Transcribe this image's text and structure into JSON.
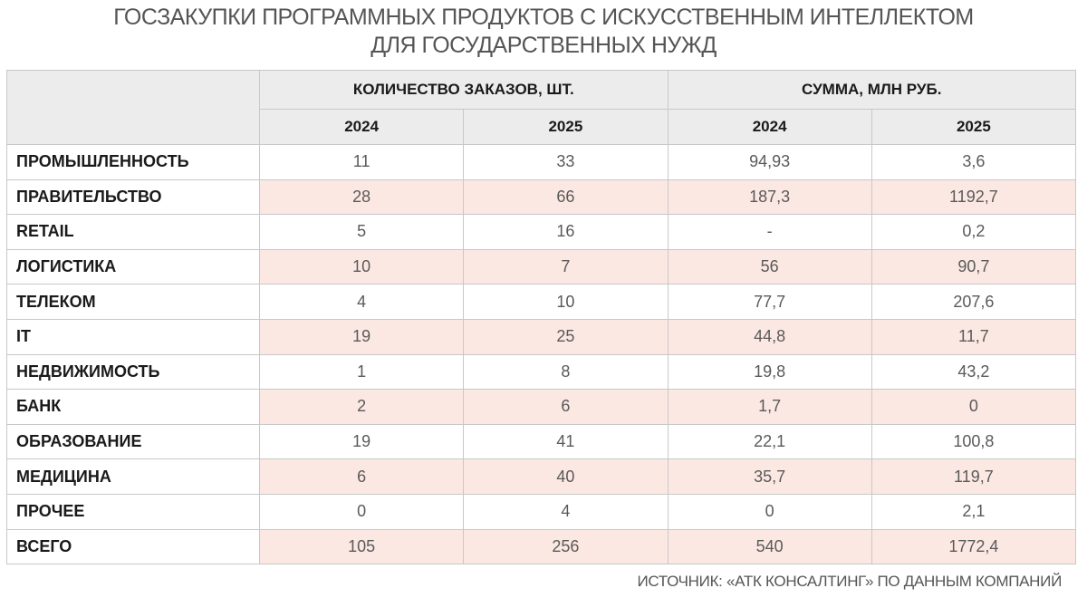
{
  "title": {
    "line1": "ГОСЗАКУПКИ ПРОГРАММНЫХ ПРОДУКТОВ С ИСКУССТВЕННЫМ ИНТЕЛЛЕКТОМ",
    "line2": "ДЛЯ ГОСУДАРСТВЕННЫХ НУЖД"
  },
  "table": {
    "group_headers": [
      "КОЛИЧЕСТВО ЗАКАЗОВ, ШТ.",
      "СУММА, МЛН РУБ."
    ],
    "year_headers": [
      "2024",
      "2025",
      "2024",
      "2025"
    ],
    "rows": [
      {
        "label": "ПРОМЫШЛЕННОСТЬ",
        "values": [
          "11",
          "33",
          "94,93",
          "3,6"
        ]
      },
      {
        "label": "ПРАВИТЕЛЬСТВО",
        "values": [
          "28",
          "66",
          "187,3",
          "1192,7"
        ]
      },
      {
        "label": "RETAIL",
        "values": [
          "5",
          "16",
          "-",
          "0,2"
        ]
      },
      {
        "label": "ЛОГИСТИКА",
        "values": [
          "10",
          "7",
          "56",
          "90,7"
        ]
      },
      {
        "label": "ТЕЛЕКОМ",
        "values": [
          "4",
          "10",
          "77,7",
          "207,6"
        ]
      },
      {
        "label": "IT",
        "values": [
          "19",
          "25",
          "44,8",
          "11,7"
        ]
      },
      {
        "label": "НЕДВИЖИМОСТЬ",
        "values": [
          "1",
          "8",
          "19,8",
          "43,2"
        ]
      },
      {
        "label": "БАНК",
        "values": [
          "2",
          "6",
          "1,7",
          "0"
        ]
      },
      {
        "label": "ОБРАЗОВАНИЕ",
        "values": [
          "19",
          "41",
          "22,1",
          "100,8"
        ]
      },
      {
        "label": "МЕДИЦИНА",
        "values": [
          "6",
          "40",
          "35,7",
          "119,7"
        ]
      },
      {
        "label": "ПРОЧЕЕ",
        "values": [
          "0",
          "4",
          "0",
          "2,1"
        ]
      },
      {
        "label": "ВСЕГО",
        "values": [
          "105",
          "256",
          "540",
          "1772,4"
        ]
      }
    ]
  },
  "source": "ИСТОЧНИК: «АТК КОНСАЛТИНГ» ПО ДАННЫМ КОМПАНИЙ",
  "colors": {
    "header_bg": "#ececec",
    "alt_row_bg": "#fce8e2",
    "border": "#c8c8c8",
    "title_text": "#555555"
  }
}
